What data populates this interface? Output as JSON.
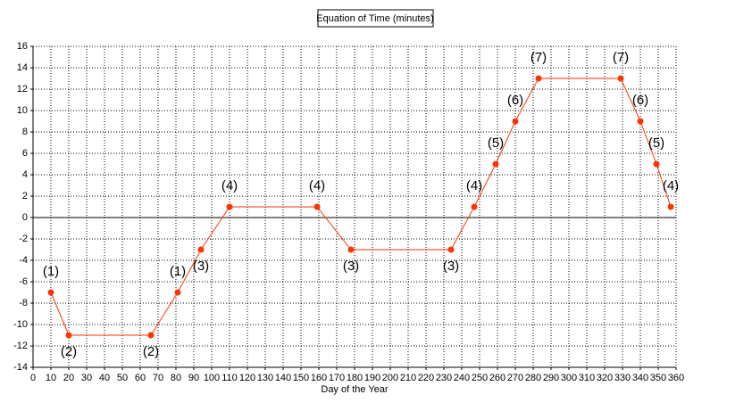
{
  "chart_data": {
    "type": "line",
    "title": "Equation of Time (minutes)",
    "x_label": "Day of the Year",
    "x": [
      10,
      20,
      66,
      81,
      94,
      110,
      159,
      178,
      234,
      247,
      259,
      270,
      283,
      329,
      340,
      349,
      357
    ],
    "values": [
      -7,
      -11,
      -11,
      -7,
      -3,
      1,
      1,
      -3,
      -3,
      1,
      5,
      9,
      13,
      13,
      9,
      5,
      1
    ],
    "point_labels": [
      "(1)",
      "(2)",
      "(2)",
      "(1)",
      "(3)",
      "(4)",
      "(4)",
      "(3)",
      "(3)",
      "(4)",
      "(5)",
      "(6)",
      "(7)",
      "(7)",
      "(6)",
      "(5)",
      "(4)"
    ],
    "color": "#ff3300",
    "xlim": [
      0,
      360
    ],
    "ylim": [
      -14,
      16
    ],
    "xticks": [
      0,
      10,
      20,
      30,
      40,
      50,
      60,
      70,
      80,
      90,
      100,
      110,
      120,
      130,
      140,
      150,
      160,
      170,
      180,
      190,
      200,
      210,
      220,
      230,
      240,
      250,
      260,
      270,
      280,
      290,
      300,
      310,
      320,
      330,
      340,
      350,
      360
    ],
    "yticks": [
      -14,
      -12,
      -10,
      -8,
      -6,
      -4,
      -2,
      0,
      2,
      4,
      6,
      8,
      10,
      12,
      14,
      16
    ],
    "grid": true
  }
}
